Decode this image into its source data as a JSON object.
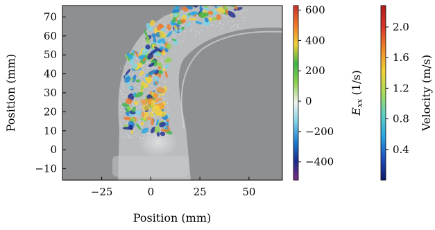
{
  "chart_data": {
    "type": "heatmap",
    "xlabel": "Position (mm)",
    "ylabel": "Position (mm)",
    "xlim": [
      -45,
      67
    ],
    "ylim": [
      -16,
      76
    ],
    "x_ticks": [
      -25,
      0,
      25,
      50
    ],
    "x_tick_labels": [
      "−25",
      "0",
      "25",
      "50"
    ],
    "y_ticks": [
      -10,
      0,
      10,
      20,
      30,
      40,
      50,
      60,
      70
    ],
    "y_tick_labels": [
      "−10",
      "0",
      "10",
      "20",
      "30",
      "40",
      "50",
      "60",
      "70"
    ],
    "colorbars": [
      {
        "name": "strain-rate",
        "label_main": "E",
        "label_sub": "xx",
        "label_unit": " (1/s)",
        "range": [
          -520,
          630
        ],
        "ticks": [
          600,
          400,
          200,
          0,
          -200,
          -400
        ],
        "tick_labels": [
          "600",
          "400",
          "200",
          "0",
          "−200",
          "−400"
        ],
        "colormap": [
          "#7b2e7e",
          "#1d2b8c",
          "#1f7fd0",
          "#7fd3e6",
          "#f2f2f2",
          "#8fd14f",
          "#3fb548",
          "#f2d13a",
          "#ef7a2a",
          "#c7302b"
        ]
      },
      {
        "name": "velocity",
        "label": "Velocity (m/s)",
        "range": [
          0,
          2.28
        ],
        "ticks": [
          2.0,
          1.6,
          1.2,
          0.8,
          0.4
        ],
        "tick_labels": [
          "2.0",
          "1.6",
          "1.2",
          "0.8",
          "0.4"
        ],
        "colormap": [
          "#111a6b",
          "#1f4fbf",
          "#29a6e3",
          "#5fd0c2",
          "#a8dc5a",
          "#f2d23a",
          "#f08a2a",
          "#d8382a",
          "#b01c20"
        ]
      }
    ],
    "colors": {
      "background": "#8d8f91",
      "phantom": "#b9bbbd",
      "arch_fill": "#c4c6c8"
    }
  }
}
